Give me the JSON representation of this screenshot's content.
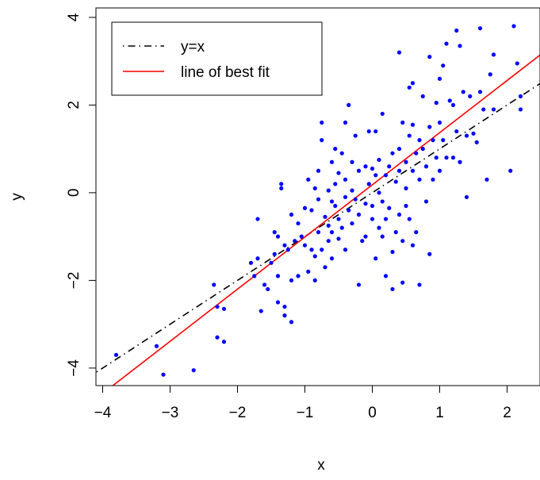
{
  "chart_data": {
    "type": "scatter",
    "title": "",
    "xlabel": "x",
    "ylabel": "y",
    "xlim": [
      -4.1,
      2.5
    ],
    "ylim": [
      -4.4,
      4.1
    ],
    "x_ticks": [
      -4,
      -3,
      -2,
      -1,
      0,
      1,
      2
    ],
    "x_tick_labels": [
      "−4",
      "−3",
      "−2",
      "−1",
      "0",
      "1",
      "2"
    ],
    "y_ticks": [
      -4,
      -2,
      0,
      2,
      4
    ],
    "y_tick_labels": [
      "−4",
      "−2",
      "0",
      "2",
      "4"
    ],
    "grid": false,
    "legend_position": "top-left",
    "colors": {
      "points": "#0000ff",
      "identity_line": "#000000",
      "fit_line": "#ff0000"
    },
    "lines": [
      {
        "name": "y=x",
        "style": "dotdash",
        "slope": 1.0,
        "intercept": 0.0
      },
      {
        "name": "line of best fit",
        "style": "solid",
        "slope": 1.19,
        "intercept": 0.18
      }
    ],
    "points": [
      [
        -3.8,
        -3.7
      ],
      [
        -3.2,
        -3.5
      ],
      [
        -3.1,
        -4.15
      ],
      [
        -2.65,
        -4.05
      ],
      [
        -2.35,
        -2.1
      ],
      [
        -2.3,
        -2.6
      ],
      [
        -2.3,
        -3.3
      ],
      [
        -2.2,
        -2.65
      ],
      [
        -2.2,
        -3.4
      ],
      [
        -1.8,
        -1.6
      ],
      [
        -1.75,
        -1.9
      ],
      [
        -1.7,
        -0.6
      ],
      [
        -1.7,
        -1.5
      ],
      [
        -1.65,
        -2.7
      ],
      [
        -1.6,
        -2.1
      ],
      [
        -1.55,
        -2.2
      ],
      [
        -1.5,
        -1.6
      ],
      [
        -1.45,
        -1.4
      ],
      [
        -1.45,
        -0.9
      ],
      [
        -1.4,
        -1.9
      ],
      [
        -1.4,
        -2.5
      ],
      [
        -1.4,
        -1.0
      ],
      [
        -1.35,
        0.1
      ],
      [
        -1.35,
        0.2
      ],
      [
        -1.3,
        -2.6
      ],
      [
        -1.3,
        -2.8
      ],
      [
        -1.3,
        -1.2
      ],
      [
        -1.25,
        -1.3
      ],
      [
        -1.2,
        -0.5
      ],
      [
        -1.2,
        -2.0
      ],
      [
        -1.2,
        -2.95
      ],
      [
        -1.15,
        -1.1
      ],
      [
        -1.1,
        -0.7
      ],
      [
        -1.1,
        -1.9
      ],
      [
        -1.05,
        -1.0
      ],
      [
        -1.0,
        -1.2
      ],
      [
        -1.0,
        -0.35
      ],
      [
        -0.95,
        -1.8
      ],
      [
        -0.95,
        0.3
      ],
      [
        -0.9,
        -1.3
      ],
      [
        -0.9,
        -0.4
      ],
      [
        -0.85,
        0.1
      ],
      [
        -0.85,
        -2.0
      ],
      [
        -0.85,
        -1.45
      ],
      [
        -0.8,
        -0.9
      ],
      [
        -0.8,
        0.5
      ],
      [
        -0.8,
        -0.15
      ],
      [
        -0.75,
        1.6
      ],
      [
        -0.75,
        1.2
      ],
      [
        -0.75,
        -1.3
      ],
      [
        -0.7,
        -0.55
      ],
      [
        -0.7,
        -1.7
      ],
      [
        -0.65,
        0.05
      ],
      [
        -0.65,
        -1.1
      ],
      [
        -0.65,
        -0.75
      ],
      [
        -0.6,
        0.7
      ],
      [
        -0.6,
        -0.2
      ],
      [
        -0.6,
        -0.9
      ],
      [
        -0.6,
        -1.5
      ],
      [
        -0.55,
        0.2
      ],
      [
        -0.55,
        -0.3
      ],
      [
        -0.55,
        1.0
      ],
      [
        -0.5,
        -1.05
      ],
      [
        -0.5,
        0.45
      ],
      [
        -0.5,
        -0.6
      ],
      [
        -0.45,
        0.9
      ],
      [
        -0.45,
        -0.8
      ],
      [
        -0.4,
        1.6
      ],
      [
        -0.4,
        -0.1
      ],
      [
        -0.4,
        0.3
      ],
      [
        -0.4,
        -1.3
      ],
      [
        -0.35,
        2.0
      ],
      [
        -0.35,
        -0.4
      ],
      [
        -0.3,
        0.7
      ],
      [
        -0.3,
        -0.7
      ],
      [
        -0.3,
        0.05
      ],
      [
        -0.25,
        -0.15
      ],
      [
        -0.25,
        1.3
      ],
      [
        -0.2,
        -0.5
      ],
      [
        -0.2,
        -2.1
      ],
      [
        -0.2,
        0.5
      ],
      [
        -0.15,
        -1.1
      ],
      [
        -0.1,
        0.6
      ],
      [
        -0.1,
        -0.25
      ],
      [
        -0.1,
        -1.0
      ],
      [
        -0.05,
        0.2
      ],
      [
        -0.05,
        1.4
      ],
      [
        0.0,
        0.55
      ],
      [
        0.0,
        -0.6
      ],
      [
        0.0,
        -0.3
      ],
      [
        0.05,
        1.4
      ],
      [
        0.05,
        0.4
      ],
      [
        0.05,
        -1.5
      ],
      [
        0.1,
        -0.8
      ],
      [
        0.1,
        0.75
      ],
      [
        0.1,
        0.0
      ],
      [
        0.15,
        1.8
      ],
      [
        0.15,
        -0.2
      ],
      [
        0.15,
        -1.0
      ],
      [
        0.2,
        0.4
      ],
      [
        0.2,
        -0.6
      ],
      [
        0.2,
        -1.9
      ],
      [
        0.25,
        0.6
      ],
      [
        0.25,
        -0.35
      ],
      [
        0.3,
        0.9
      ],
      [
        0.3,
        -1.35
      ],
      [
        0.3,
        -2.2
      ],
      [
        0.35,
        0.25
      ],
      [
        0.35,
        -0.9
      ],
      [
        0.4,
        3.2
      ],
      [
        0.4,
        1.0
      ],
      [
        0.4,
        0.5
      ],
      [
        0.4,
        -0.5
      ],
      [
        0.45,
        1.6
      ],
      [
        0.45,
        -1.1
      ],
      [
        0.45,
        -2.05
      ],
      [
        0.5,
        0.1
      ],
      [
        0.5,
        0.7
      ],
      [
        0.5,
        -0.3
      ],
      [
        0.55,
        2.4
      ],
      [
        0.55,
        1.3
      ],
      [
        0.55,
        -0.6
      ],
      [
        0.6,
        2.5
      ],
      [
        0.6,
        1.55
      ],
      [
        0.6,
        0.5
      ],
      [
        0.6,
        -1.2
      ],
      [
        0.65,
        0.9
      ],
      [
        0.65,
        -0.9
      ],
      [
        0.7,
        1.2
      ],
      [
        0.7,
        -2.1
      ],
      [
        0.7,
        0.3
      ],
      [
        0.75,
        2.2
      ],
      [
        0.75,
        1.0
      ],
      [
        0.8,
        0.6
      ],
      [
        0.8,
        -0.2
      ],
      [
        0.85,
        3.1
      ],
      [
        0.85,
        1.5
      ],
      [
        0.85,
        -1.4
      ],
      [
        0.9,
        1.2
      ],
      [
        0.9,
        0.3
      ],
      [
        0.95,
        2.05
      ],
      [
        0.95,
        0.8
      ],
      [
        1.0,
        2.6
      ],
      [
        1.0,
        1.6
      ],
      [
        1.0,
        0.5
      ],
      [
        1.05,
        2.9
      ],
      [
        1.05,
        1.2
      ],
      [
        1.1,
        3.4
      ],
      [
        1.1,
        0.8
      ],
      [
        1.15,
        2.1
      ],
      [
        1.2,
        2.0
      ],
      [
        1.2,
        0.8
      ],
      [
        1.25,
        3.7
      ],
      [
        1.25,
        1.4
      ],
      [
        1.3,
        3.35
      ],
      [
        1.3,
        0.7
      ],
      [
        1.35,
        2.3
      ],
      [
        1.4,
        1.3
      ],
      [
        1.4,
        -0.1
      ],
      [
        1.45,
        2.2
      ],
      [
        1.5,
        1.35
      ],
      [
        1.55,
        1.15
      ],
      [
        1.6,
        3.75
      ],
      [
        1.6,
        2.3
      ],
      [
        1.65,
        1.9
      ],
      [
        1.7,
        0.3
      ],
      [
        1.75,
        2.7
      ],
      [
        1.8,
        3.15
      ],
      [
        1.8,
        1.9
      ],
      [
        2.05,
        0.5
      ],
      [
        2.1,
        3.8
      ],
      [
        2.15,
        2.95
      ],
      [
        2.2,
        2.2
      ],
      [
        2.2,
        1.9
      ]
    ]
  }
}
